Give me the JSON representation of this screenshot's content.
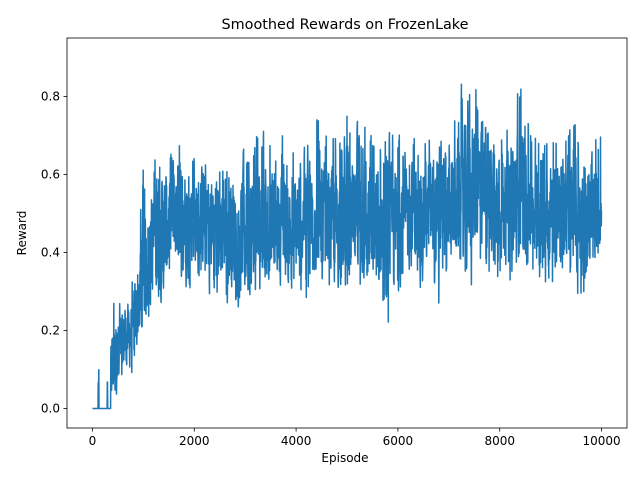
{
  "chart_data": {
    "type": "line",
    "title": "Smoothed Rewards on FrozenLake",
    "xlabel": "Episode",
    "ylabel": "Reward",
    "xlim": [
      -500,
      10500
    ],
    "ylim": [
      -0.05,
      0.95
    ],
    "xticks": [
      0,
      2000,
      4000,
      6000,
      8000,
      10000
    ],
    "xtick_labels": [
      "0",
      "2000",
      "4000",
      "6000",
      "8000",
      "10000"
    ],
    "yticks": [
      0.0,
      0.2,
      0.4,
      0.6,
      0.8
    ],
    "ytick_labels": [
      "0.0",
      "0.2",
      "0.4",
      "0.6",
      "0.8"
    ],
    "grid": false,
    "series": [
      {
        "color": "#1f77b4",
        "x": [
          0,
          200,
          400,
          600,
          800,
          1000,
          1200,
          1400,
          1600,
          1800,
          2000,
          2200,
          2400,
          2600,
          2800,
          3000,
          3200,
          3400,
          3600,
          3800,
          4000,
          4200,
          4400,
          4600,
          4800,
          5000,
          5200,
          5400,
          5600,
          5800,
          6000,
          6200,
          6400,
          6600,
          6800,
          7000,
          7200,
          7400,
          7600,
          7800,
          8000,
          8200,
          8400,
          8600,
          8800,
          9000,
          9200,
          9400,
          9600,
          9800,
          10000
        ],
        "mean": [
          0.0,
          0.0,
          0.12,
          0.17,
          0.2,
          0.36,
          0.42,
          0.45,
          0.5,
          0.5,
          0.49,
          0.48,
          0.47,
          0.45,
          0.46,
          0.44,
          0.46,
          0.47,
          0.48,
          0.47,
          0.47,
          0.49,
          0.5,
          0.49,
          0.47,
          0.46,
          0.47,
          0.48,
          0.47,
          0.45,
          0.47,
          0.49,
          0.5,
          0.5,
          0.49,
          0.52,
          0.53,
          0.56,
          0.58,
          0.55,
          0.52,
          0.53,
          0.55,
          0.53,
          0.51,
          0.5,
          0.5,
          0.51,
          0.49,
          0.5,
          0.5
        ],
        "low": [
          0.0,
          0.0,
          0.0,
          0.05,
          0.05,
          0.2,
          0.19,
          0.22,
          0.33,
          0.28,
          0.3,
          0.27,
          0.24,
          0.22,
          0.25,
          0.17,
          0.25,
          0.27,
          0.29,
          0.27,
          0.25,
          0.21,
          0.3,
          0.29,
          0.27,
          0.22,
          0.22,
          0.25,
          0.26,
          0.14,
          0.26,
          0.27,
          0.29,
          0.3,
          0.19,
          0.3,
          0.31,
          0.28,
          0.3,
          0.25,
          0.27,
          0.3,
          0.33,
          0.28,
          0.27,
          0.28,
          0.3,
          0.29,
          0.21,
          0.3,
          0.45
        ],
        "high": [
          0.0,
          0.1,
          0.35,
          0.3,
          0.36,
          0.69,
          0.66,
          0.76,
          0.73,
          0.75,
          0.7,
          0.67,
          0.78,
          0.66,
          0.73,
          0.7,
          0.79,
          0.73,
          0.72,
          0.73,
          0.73,
          0.68,
          0.84,
          0.77,
          0.79,
          0.8,
          0.75,
          0.82,
          0.72,
          0.71,
          0.79,
          0.73,
          0.77,
          0.74,
          0.73,
          0.72,
          0.87,
          0.9,
          0.87,
          0.78,
          0.81,
          0.73,
          0.91,
          0.8,
          0.73,
          0.75,
          0.78,
          0.79,
          0.74,
          0.78,
          0.81
        ],
        "episodes": 10000,
        "active_from": 360
      }
    ]
  }
}
